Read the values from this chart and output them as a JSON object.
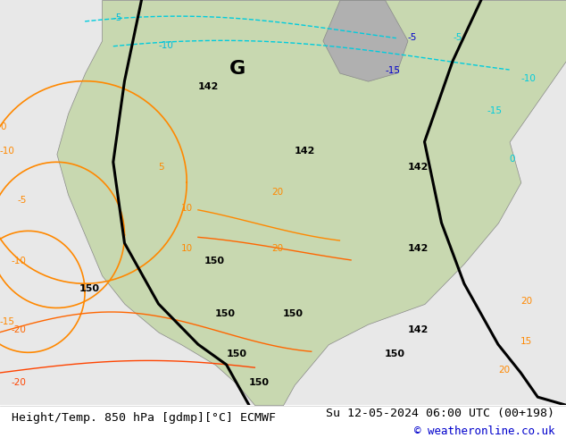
{
  "title_left": "Height/Temp. 850 hPa [gdmp][°C] ECMWF",
  "title_right": "Su 12-05-2024 06:00 UTC (00+198)",
  "copyright": "© weatheronline.co.uk",
  "bg_color": "#ffffff",
  "map_bg_color": "#f0ece0",
  "bottom_text_color": "#000000",
  "copyright_color": "#0000cc",
  "fig_width": 6.34,
  "fig_height": 4.9,
  "dpi": 100,
  "bottom_bar_height": 0.075,
  "title_fontsize": 9.5,
  "copyright_fontsize": 9.0
}
